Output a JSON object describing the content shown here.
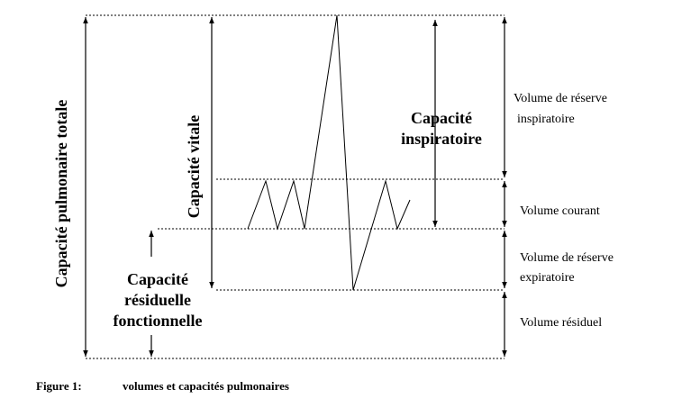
{
  "labels": {
    "total_lung_capacity": "Capacité pulmonaire totale",
    "vital_capacity": "Capacité vitale",
    "inspiratory_capacity": [
      "Capacité",
      "inspiratoire"
    ],
    "functional_residual_capacity": [
      "Capacité",
      "résiduelle",
      "fonctionnelle"
    ],
    "inspiratory_reserve_volume": [
      "Volume de réserve",
      "inspiratoire"
    ],
    "tidal_volume": "Volume courant",
    "expiratory_reserve_volume": [
      "Volume de réserve",
      "expiratoire"
    ],
    "residual_volume": "Volume résiduel"
  },
  "caption": {
    "number": "Figure 1:",
    "text": "volumes et capacités pulmonaires"
  }
}
